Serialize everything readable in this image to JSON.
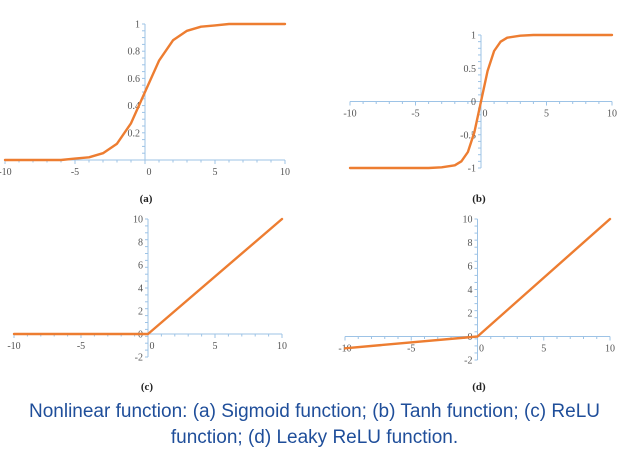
{
  "caption": {
    "line1": "Nonlinear function: (a) Sigmoid function; (b) Tanh function; (c) ReLU",
    "line2": "function; (d) Leaky ReLU function."
  },
  "colors": {
    "curve": "#ED7D31",
    "axis": "#9DC3E6"
  },
  "chart_data": [
    {
      "type": "line",
      "panel_label": "(a)",
      "xlim": [
        -10,
        10
      ],
      "ylim": [
        0,
        1
      ],
      "x_ticks": [
        "-10",
        "-5",
        "0",
        "5",
        "10"
      ],
      "y_ticks": [
        "0.2",
        "0.4",
        "0.6",
        "0.8",
        "1"
      ],
      "series": [
        {
          "x": [
            -10,
            -8,
            -6,
            -5,
            -4,
            -3,
            -2,
            -1,
            0,
            1,
            2,
            3,
            4,
            5,
            6,
            8,
            10
          ],
          "y": [
            0.0,
            0.0,
            0.0,
            0.01,
            0.02,
            0.05,
            0.12,
            0.27,
            0.5,
            0.73,
            0.88,
            0.95,
            0.98,
            0.99,
            1.0,
            1.0,
            1.0
          ]
        }
      ]
    },
    {
      "type": "line",
      "panel_label": "(b)",
      "xlim": [
        -10,
        10
      ],
      "ylim": [
        -1,
        1
      ],
      "x_ticks": [
        "-10",
        "-5",
        "0",
        "5",
        "10"
      ],
      "y_ticks": [
        "-1",
        "-0.5",
        "0",
        "0.5",
        "1"
      ],
      "series": [
        {
          "x": [
            -10,
            -6,
            -4,
            -3,
            -2,
            -1.5,
            -1,
            -0.5,
            0,
            0.5,
            1,
            1.5,
            2,
            3,
            4,
            6,
            10
          ],
          "y": [
            -1.0,
            -1.0,
            -1.0,
            -0.99,
            -0.96,
            -0.9,
            -0.76,
            -0.46,
            0.0,
            0.46,
            0.76,
            0.9,
            0.96,
            0.99,
            1.0,
            1.0,
            1.0
          ]
        }
      ]
    },
    {
      "type": "line",
      "panel_label": "(c)",
      "xlim": [
        -10,
        10
      ],
      "ylim": [
        -2,
        10
      ],
      "x_ticks": [
        "-10",
        "-5",
        "0",
        "5",
        "10"
      ],
      "y_ticks": [
        "-2",
        "0",
        "2",
        "4",
        "6",
        "8",
        "10"
      ],
      "series": [
        {
          "x": [
            -10,
            0,
            10
          ],
          "y": [
            0,
            0,
            10
          ]
        }
      ]
    },
    {
      "type": "line",
      "panel_label": "(d)",
      "xlim": [
        -10,
        10
      ],
      "ylim": [
        -2,
        10
      ],
      "x_ticks": [
        "-10",
        "-5",
        "0",
        "5",
        "10"
      ],
      "y_ticks": [
        "-2",
        "0",
        "2",
        "4",
        "6",
        "8",
        "10"
      ],
      "series": [
        {
          "x": [
            -10,
            0,
            10
          ],
          "y": [
            -1,
            0,
            10
          ]
        }
      ]
    }
  ]
}
